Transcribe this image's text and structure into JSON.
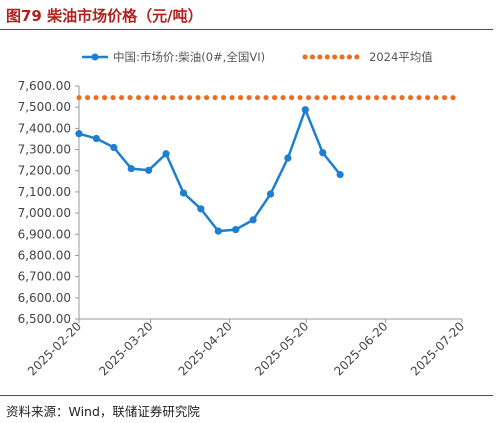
{
  "figure": {
    "title": "图79 柴油市场价格（元/吨）",
    "source": "资料来源：Wind，联储证券研究院"
  },
  "colors": {
    "series_line": "#1e7fd0",
    "reference_line": "#ee6c1c",
    "rule": "#a22a2a",
    "title": "#b0211f"
  },
  "chart_data": {
    "type": "line",
    "x": [
      "2025-02-20",
      "2025-02-27",
      "2025-03-06",
      "2025-03-13",
      "2025-03-20",
      "2025-03-27",
      "2025-04-03",
      "2025-04-10",
      "2025-04-17",
      "2025-04-24",
      "2025-05-01",
      "2025-05-08",
      "2025-05-15",
      "2025-05-22",
      "2025-05-29",
      "2025-06-05",
      "2025-06-12",
      "2025-06-19",
      "2025-06-26",
      "2025-07-03",
      "2025-07-10",
      "2025-07-17",
      "2025-07-20"
    ],
    "x_tick_labels": [
      "2025-02-20",
      "2025-03-20",
      "2025-04-20",
      "2025-05-20",
      "2025-06-20",
      "2025-07-20"
    ],
    "series": [
      {
        "name": "中国:市场价:柴油(0#,全国VI)",
        "style": "solid-line-with-markers",
        "points": [
          {
            "x": "2025-02-20",
            "y": 7375
          },
          {
            "x": "2025-02-27",
            "y": 7352
          },
          {
            "x": "2025-03-06",
            "y": 7310
          },
          {
            "x": "2025-03-13",
            "y": 7210
          },
          {
            "x": "2025-03-20",
            "y": 7202
          },
          {
            "x": "2025-03-27",
            "y": 7280
          },
          {
            "x": "2025-04-03",
            "y": 7095
          },
          {
            "x": "2025-04-10",
            "y": 7020
          },
          {
            "x": "2025-04-17",
            "y": 6915
          },
          {
            "x": "2025-04-24",
            "y": 6922
          },
          {
            "x": "2025-05-01",
            "y": 6968
          },
          {
            "x": "2025-05-08",
            "y": 7090
          },
          {
            "x": "2025-05-15",
            "y": 7260
          },
          {
            "x": "2025-05-22",
            "y": 7488
          },
          {
            "x": "2025-05-29",
            "y": 7285
          },
          {
            "x": "2025-06-05",
            "y": 7182
          }
        ]
      },
      {
        "name": "2024平均值",
        "style": "dotted",
        "value": 7545
      }
    ],
    "ylim": [
      6500,
      7600
    ],
    "y_ticks": [
      "6,500.00",
      "6,600.00",
      "6,700.00",
      "6,800.00",
      "6,900.00",
      "7,000.00",
      "7,100.00",
      "7,200.00",
      "7,300.00",
      "7,400.00",
      "7,500.00",
      "7,600.00"
    ],
    "legend_position": "top",
    "grid": false
  }
}
